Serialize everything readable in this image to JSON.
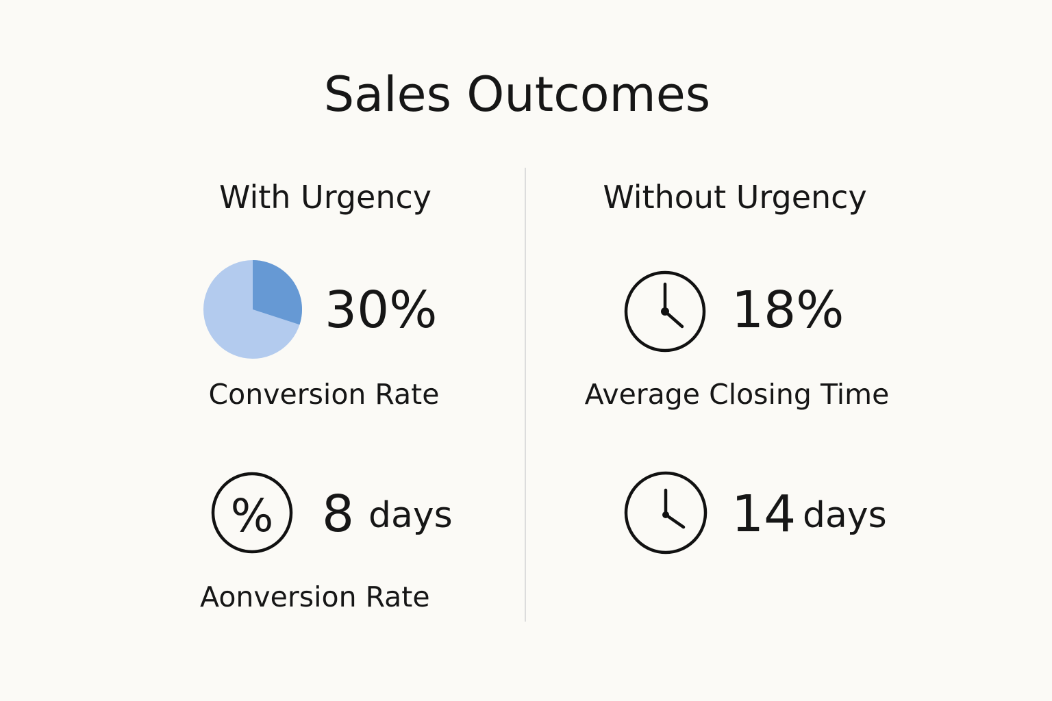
{
  "title": "Sales Outcomes",
  "left": {
    "heading": "With Urgency",
    "stat1": {
      "value": 30,
      "label": "30%"
    },
    "caption1": "Conversion Rate",
    "stat2_number": "8",
    "stat2_unit": "days",
    "caption2": "Aonversion Rate"
  },
  "right": {
    "heading": "Without Urgency",
    "stat1": "18%",
    "caption1": "Average Closing Time",
    "stat2_number": "14",
    "stat2_unit": "days"
  }
}
